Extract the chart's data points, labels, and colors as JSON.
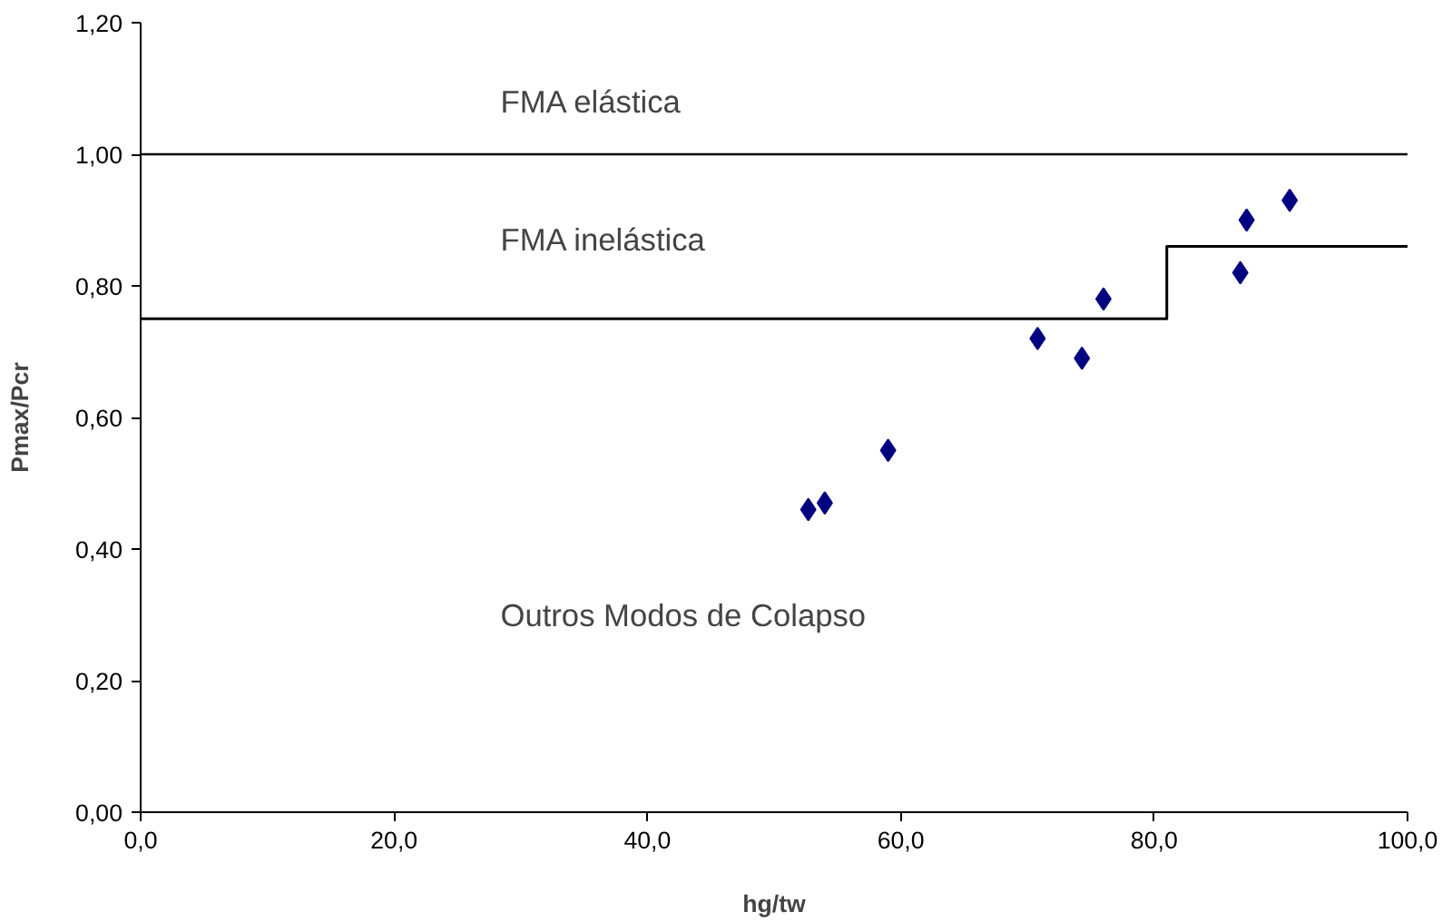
{
  "chart_data": {
    "type": "scatter",
    "xlabel": "hg/tw",
    "ylabel": "Pmax/Pcr",
    "x": [
      52.7,
      54.0,
      59.0,
      70.8,
      74.3,
      76.0,
      86.8,
      87.3,
      90.7
    ],
    "series": [
      {
        "color": "#000080",
        "values": [
          0.46,
          0.47,
          0.55,
          0.72,
          0.69,
          0.78,
          0.82,
          0.9,
          0.93
        ],
        "marker": "diamond"
      },
      {
        "type": "step",
        "color": "#000000",
        "x": [
          0,
          81,
          100
        ],
        "values": [
          0.75,
          0.86,
          0.86
        ],
        "marker": "none"
      }
    ],
    "ref_lines": [
      {
        "axis": "y",
        "value": 1.0,
        "color": "#000000"
      }
    ],
    "annotations": [
      "FMA elástica",
      "FMA inelástica",
      "Outros Modos de Colapso"
    ],
    "xlim": [
      0,
      100
    ],
    "ylim": [
      0,
      1.2
    ],
    "xticks": [
      {
        "value": 0,
        "label": "0,0"
      },
      {
        "value": 20,
        "label": "20,0"
      },
      {
        "value": 40,
        "label": "40,0"
      },
      {
        "value": 60,
        "label": "60,0"
      },
      {
        "value": 80,
        "label": "80,0"
      },
      {
        "value": 100,
        "label": "100,0"
      }
    ],
    "yticks": [
      {
        "value": 0,
        "label": "0,00"
      },
      {
        "value": 0.2,
        "label": "0,20"
      },
      {
        "value": 0.4,
        "label": "0,40"
      },
      {
        "value": 0.6,
        "label": "0,60"
      },
      {
        "value": 0.8,
        "label": "0,80"
      },
      {
        "value": 1.0,
        "label": "1,00"
      },
      {
        "value": 1.2,
        "label": "1,20"
      }
    ],
    "grid": false
  }
}
